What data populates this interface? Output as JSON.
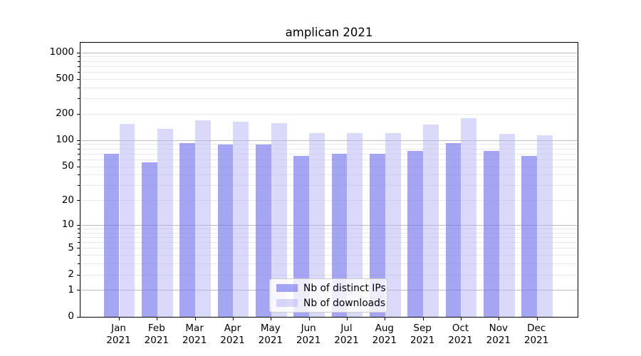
{
  "title": "amplican 2021",
  "chart_data": {
    "type": "bar",
    "categories": [
      "Jan 2021",
      "Feb 2021",
      "Mar 2021",
      "Apr 2021",
      "May 2021",
      "Jun 2021",
      "Jul 2021",
      "Aug 2021",
      "Sep 2021",
      "Oct 2021",
      "Nov 2021",
      "Dec 2021"
    ],
    "series": [
      {
        "name": "Nb of distinct IPs",
        "values": [
          70,
          56,
          93,
          90,
          90,
          66,
          71,
          71,
          76,
          93,
          76,
          67
        ]
      },
      {
        "name": "Nb of downloads",
        "values": [
          156,
          135,
          169,
          163,
          158,
          121,
          122,
          121,
          151,
          179,
          120,
          115
        ]
      }
    ],
    "title": "amplican 2021",
    "xlabel": "",
    "ylabel": "",
    "yscale": "log10(value+1)",
    "ytick_labels": [
      0,
      1,
      2,
      5,
      10,
      20,
      50,
      100,
      200,
      500,
      1000
    ],
    "ylim": [
      0,
      1300
    ],
    "grid": "horizontal, major and minor log decades",
    "legend_position": "lower center inside plot"
  },
  "legend": {
    "items": [
      {
        "label": "Nb of distinct IPs",
        "color_key": "ips_bar"
      },
      {
        "label": "Nb of downloads",
        "color_key": "downloads_bar"
      }
    ]
  },
  "colors": {
    "ips_bar": "rgba(119,119,238,0.66)",
    "downloads_bar": "rgba(174,174,244,0.47)",
    "grid_major": "#bdbdbd",
    "grid_minor": "#e9e9e9",
    "axis": "#000000",
    "text": "#000000"
  }
}
